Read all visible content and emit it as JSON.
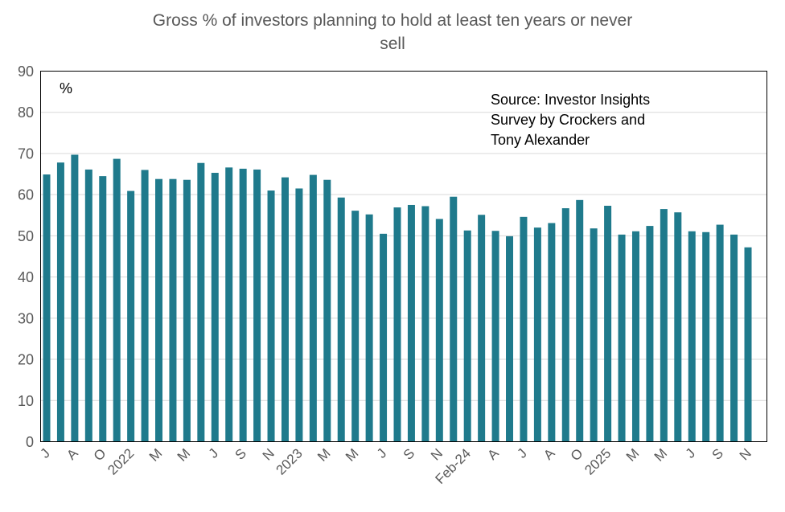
{
  "chart_data": {
    "type": "bar",
    "title": "Gross % of investors planning to hold at least ten years or never sell",
    "title_lines": [
      "Gross % of investors planning to hold at least ten years or never",
      "sell"
    ],
    "y_axis_unit_label": "%",
    "source_text": "Source: Investor Insights Survey by Crockers and Tony Alexander",
    "source_lines": [
      "Source: Investor Insights",
      "Survey by Crockers and",
      "Tony Alexander"
    ],
    "ylim": [
      0,
      90
    ],
    "yticks": [
      0,
      10,
      20,
      30,
      40,
      50,
      60,
      70,
      80,
      90
    ],
    "grid": "horizontal",
    "legend": "none",
    "x_tick_labels": [
      "J",
      "A",
      "O",
      "2022",
      "M",
      "M",
      "J",
      "S",
      "N",
      "2023",
      "M",
      "M",
      "J",
      "S",
      "N",
      "Feb-24",
      "A",
      "J",
      "A",
      "O",
      "2025",
      "M",
      "M",
      "J",
      "S",
      "N"
    ],
    "x_label_every_nth_bar": 2,
    "values": [
      64.9,
      67.8,
      69.7,
      66.1,
      64.5,
      68.7,
      60.9,
      66.0,
      63.8,
      63.8,
      63.6,
      67.7,
      65.3,
      66.6,
      66.3,
      66.1,
      61.0,
      64.2,
      61.5,
      64.8,
      63.6,
      59.3,
      56.1,
      55.2,
      50.5,
      56.9,
      57.5,
      57.2,
      54.1,
      59.5,
      51.3,
      55.1,
      51.2,
      49.9,
      54.6,
      52.0,
      53.1,
      56.7,
      58.7,
      51.8,
      57.3,
      50.3,
      51.1,
      52.4,
      56.5,
      55.7,
      51.1,
      50.9,
      52.7,
      50.3,
      47.2
    ],
    "colors": {
      "bar": "#1F7A8C",
      "title": "#595959",
      "tick": "#595959",
      "grid": "#D9D9D9",
      "axis": "#000000",
      "annotation": "#000000"
    }
  }
}
